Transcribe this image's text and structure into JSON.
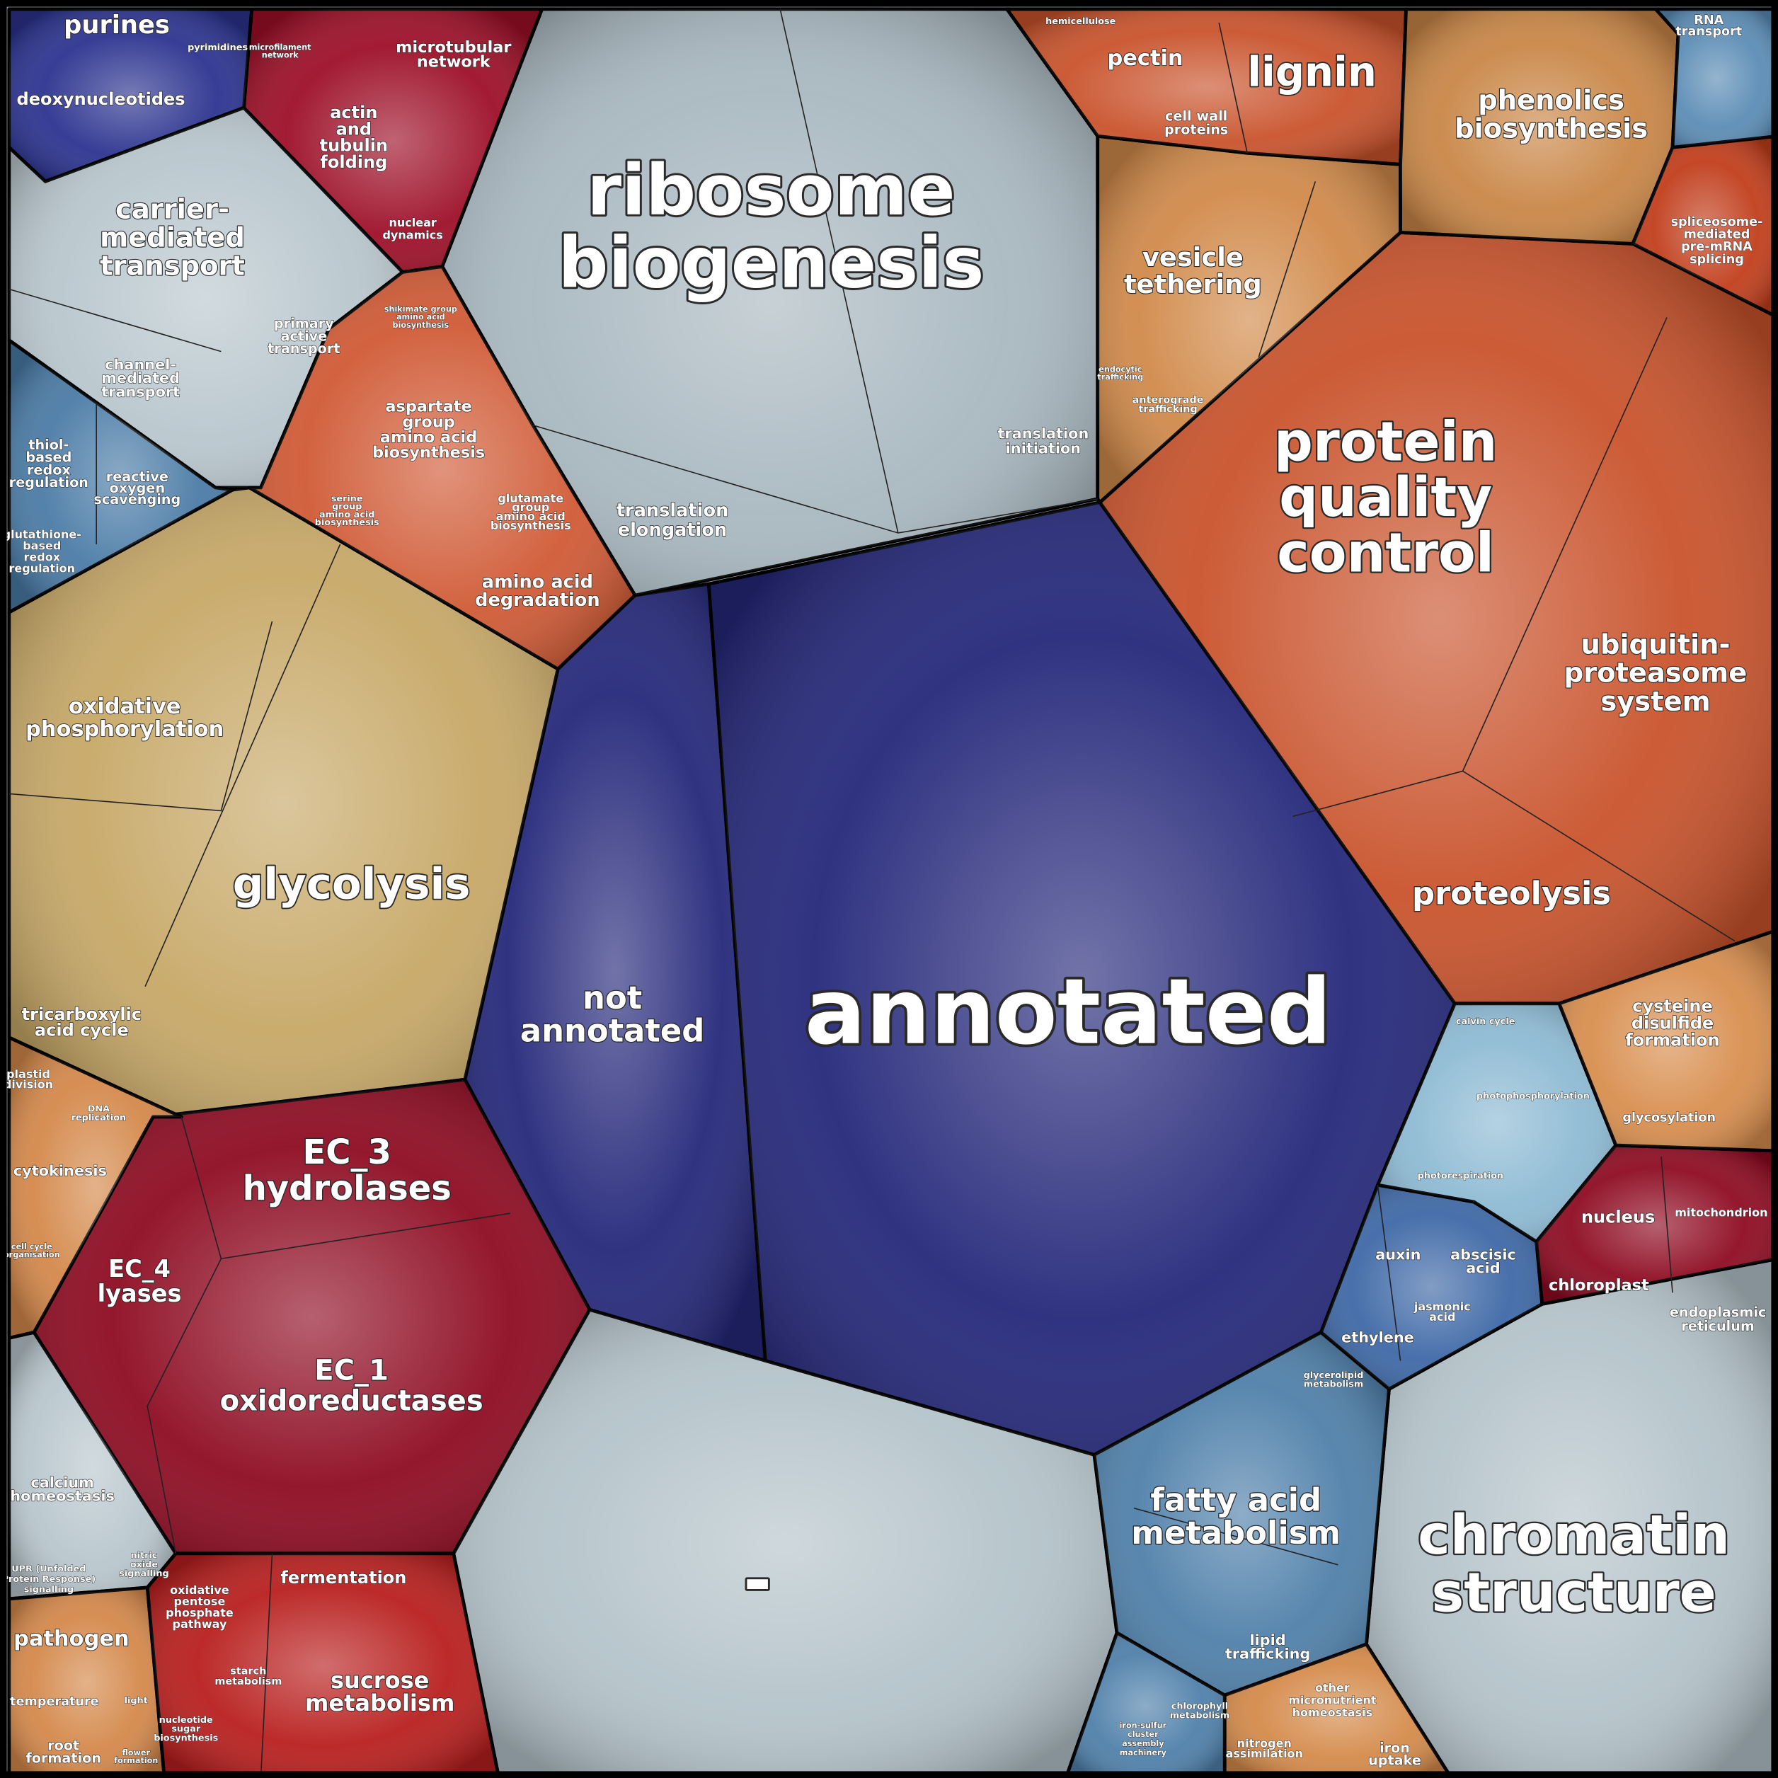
{
  "regions": [
    {
      "color": "#25287a",
      "labels": [
        [
          "not",
          "annotated"
        ]
      ]
    },
    {
      "color": "#25287a",
      "labels": [
        [
          "annotated"
        ]
      ]
    },
    {
      "color": "#a9b8c0",
      "labels": [
        [
          "ribosome",
          "biogenesis"
        ],
        [
          "translation",
          "elongation"
        ],
        [
          "translation",
          "initiation"
        ]
      ]
    },
    {
      "color": "#c9532c",
      "labels": [
        [
          "protein",
          "quality",
          "control"
        ],
        [
          "ubiquitin-",
          "proteasome",
          "system"
        ],
        [
          "proteolysis"
        ]
      ]
    },
    {
      "color": "#c7a867",
      "labels": [
        [
          "glycolysis"
        ],
        [
          "oxidative",
          "phosphorylation"
        ],
        [
          "tricarboxylic",
          "acid cycle"
        ]
      ]
    },
    {
      "color": "#8e0b22",
      "labels": [
        [
          "EC_3",
          "hydrolases"
        ],
        [
          "EC_4",
          "lyases"
        ],
        [
          "EC_1",
          "oxidoreductases"
        ]
      ]
    },
    {
      "color": "#b4c3ca",
      "labels": [
        [
          "-"
        ]
      ]
    },
    {
      "color": "#b4c3ca",
      "labels": [
        [
          "chromatin",
          "structure"
        ]
      ]
    },
    {
      "color": "#4f80aa",
      "labels": [
        [
          "fatty acid",
          "metabolism"
        ],
        [
          "lipid",
          "trafficking"
        ],
        [
          "glycerolipid",
          "metabolism"
        ]
      ]
    },
    {
      "color": "#3e68a6",
      "labels": [
        [
          "auxin"
        ],
        [
          "abscisic",
          "acid"
        ],
        [
          "jasmonic",
          "acid"
        ],
        [
          "ethylene"
        ]
      ]
    },
    {
      "color": "#8dbad3",
      "labels": [
        [
          "calvin cycle"
        ],
        [
          "photophosphorylation"
        ],
        [
          "photorespiration"
        ]
      ]
    },
    {
      "color": "#8e0b22",
      "labels": [
        [
          "nucleus"
        ],
        [
          "mitochondrion"
        ],
        [
          "chloroplast"
        ],
        [
          "endoplasmic",
          "reticulum"
        ]
      ]
    },
    {
      "color": "#d88e4e",
      "labels": [
        [
          "cysteine",
          "disulfide",
          "formation"
        ],
        [
          "glycosylation"
        ]
      ]
    },
    {
      "color": "#d18a4a",
      "labels": [
        [
          "vesicle",
          "tethering"
        ],
        [
          "anterograde",
          "trafficking"
        ],
        [
          "endocytic",
          "trafficking"
        ]
      ]
    },
    {
      "color": "#c9532c",
      "labels": [
        [
          "pectin"
        ],
        [
          "lignin"
        ],
        [
          "cell wall",
          "proteins"
        ],
        [
          "hemicellulose"
        ]
      ]
    },
    {
      "color": "#c98646",
      "labels": [
        [
          "phenolics",
          "biosynthesis"
        ]
      ]
    },
    {
      "color": "#c13e1c",
      "labels": [
        [
          "spliceosome-",
          "mediated",
          "pre-mRNA",
          "splicing"
        ]
      ]
    },
    {
      "color": "#5b8cb5",
      "labels": [
        [
          "RNA",
          "transport"
        ]
      ]
    },
    {
      "color": "#9d0f28",
      "labels": [
        [
          "actin",
          "and",
          "tubulin",
          "folding"
        ],
        [
          "microtubular",
          "network"
        ],
        [
          "nuclear",
          "dynamics"
        ],
        [
          "microfilament",
          "network"
        ]
      ]
    },
    {
      "color": "#2c338f",
      "labels": [
        [
          "purines"
        ],
        [
          "deoxynucleotides"
        ],
        [
          "pyrimidines"
        ]
      ]
    },
    {
      "color": "#b9c7ce",
      "labels": [
        [
          "carrier-",
          "mediated",
          "transport"
        ],
        [
          "channel-",
          "mediated",
          "transport"
        ],
        [
          "primary",
          "active",
          "transport"
        ]
      ]
    },
    {
      "color": "#d05a35",
      "labels": [
        [
          "aspartate",
          "group",
          "amino acid",
          "biosynthesis"
        ],
        [
          "glutamate",
          "group",
          "amino acid",
          "biosynthesis"
        ],
        [
          "serine",
          "group",
          "amino acid",
          "biosynthesis"
        ],
        [
          "shikimate group",
          "amino acid",
          "biosynthesis"
        ],
        [
          "amino acid",
          "degradation"
        ]
      ]
    },
    {
      "color": "#4a7ba6",
      "labels": [
        [
          "thiol-",
          "based",
          "redox",
          "regulation"
        ],
        [
          "reactive",
          "oxygen",
          "scavenging"
        ],
        [
          "glutathione-",
          "based",
          "redox",
          "regulation"
        ]
      ]
    },
    {
      "color": "#d4884a",
      "labels": [
        [
          "plastid",
          "division"
        ],
        [
          "DNA",
          "replication"
        ],
        [
          "cytokinesis"
        ],
        [
          "cell cycle",
          "organisation"
        ]
      ]
    },
    {
      "color": "#b9c7ce",
      "labels": [
        [
          "calcium",
          "homeostasis"
        ],
        [
          "nitric",
          "oxide",
          "signalling"
        ],
        [
          "UPR (Unfolded",
          "Protein Response)",
          "signalling"
        ]
      ]
    },
    {
      "color": "#d4884a",
      "labels": [
        [
          "pathogen"
        ],
        [
          "temperature"
        ],
        [
          "light"
        ],
        [
          "root",
          "formation"
        ],
        [
          "flower",
          "formation"
        ]
      ]
    },
    {
      "color": "#b81f1e",
      "labels": [
        [
          "fermentation"
        ],
        [
          "sucrose",
          "metabolism"
        ],
        [
          "oxidative",
          "pentose",
          "phosphate",
          "pathway"
        ],
        [
          "starch",
          "metabolism"
        ],
        [
          "nucleotide",
          "sugar",
          "biosynthesis"
        ]
      ]
    },
    {
      "color": "#d48a4a",
      "labels": [
        [
          "other",
          "micronutrient",
          "homeostasis"
        ],
        [
          "nitrogen",
          "assimilation"
        ],
        [
          "iron",
          "uptake"
        ]
      ]
    },
    {
      "color": "#4f80aa",
      "labels": [
        [
          "chlorophyll",
          "metabolism"
        ],
        [
          "iron-sulfur",
          "cluster",
          "assembly",
          "machinery"
        ]
      ]
    }
  ]
}
